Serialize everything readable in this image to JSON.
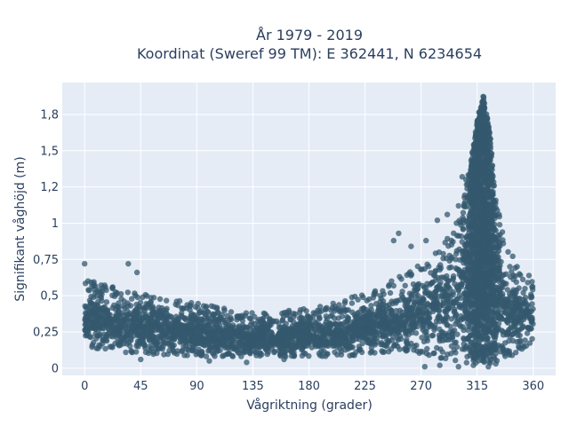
{
  "chart_data": {
    "type": "scatter",
    "title_line1": "År 1979 - 2019",
    "title_line2": "Koordinat (Sweref 99 TM): E 362441, N 6234654",
    "xlabel": "Vågriktning (grader)",
    "ylabel": "Signifikant våghöjd (m)",
    "xlim": [
      -18,
      378
    ],
    "ylim": [
      -0.05,
      1.97
    ],
    "x_ticks": [
      0,
      45,
      90,
      135,
      180,
      225,
      270,
      315,
      360
    ],
    "x_tick_labels": [
      "0",
      "45",
      "90",
      "135",
      "180",
      "225",
      "270",
      "315",
      "360"
    ],
    "y_ticks": [
      0,
      0.25,
      0.5,
      0.75,
      1,
      1.25,
      1.5,
      1.75
    ],
    "y_tick_labels": [
      "0",
      "0,25",
      "0,5",
      "0,75",
      "1",
      "1,2",
      "1,5",
      "1,8"
    ],
    "grid": true,
    "marker_color": "#34586e",
    "plot_background": "#e5ecf6",
    "envelope": {
      "direction": [
        0,
        10,
        20,
        30,
        45,
        60,
        90,
        120,
        135,
        150,
        180,
        200,
        225,
        240,
        260,
        280,
        295,
        305,
        312,
        316,
        320,
        325,
        330,
        340,
        350,
        360
      ],
      "upper": [
        0.62,
        0.6,
        0.57,
        0.53,
        0.52,
        0.48,
        0.45,
        0.4,
        0.38,
        0.39,
        0.42,
        0.45,
        0.52,
        0.58,
        0.66,
        0.78,
        0.95,
        1.2,
        1.55,
        1.75,
        1.88,
        1.65,
        1.15,
        0.82,
        0.7,
        0.62
      ],
      "lower": [
        0.15,
        0.13,
        0.12,
        0.11,
        0.1,
        0.09,
        0.08,
        0.08,
        0.08,
        0.08,
        0.08,
        0.08,
        0.09,
        0.1,
        0.1,
        0.08,
        0.05,
        0.04,
        0.03,
        0.03,
        0.03,
        0.03,
        0.04,
        0.06,
        0.1,
        0.15
      ]
    },
    "outliers": [
      {
        "x": 0,
        "y": 0.72
      },
      {
        "x": 35,
        "y": 0.72
      },
      {
        "x": 42,
        "y": 0.66
      },
      {
        "x": 248,
        "y": 0.88
      },
      {
        "x": 252,
        "y": 0.93
      },
      {
        "x": 262,
        "y": 0.84
      },
      {
        "x": 274,
        "y": 0.88
      },
      {
        "x": 283,
        "y": 1.02
      },
      {
        "x": 291,
        "y": 1.06
      },
      {
        "x": 300,
        "y": 1.12
      },
      {
        "x": 303,
        "y": 1.32
      },
      {
        "x": 306,
        "y": 1.3
      },
      {
        "x": 307,
        "y": 1.18
      },
      {
        "x": 326,
        "y": 1.22
      },
      {
        "x": 330,
        "y": 0.95
      },
      {
        "x": 336,
        "y": 0.86
      },
      {
        "x": 347,
        "y": 0.7
      },
      {
        "x": 352,
        "y": 0.52
      },
      {
        "x": 273,
        "y": 0.01
      },
      {
        "x": 285,
        "y": 0.02
      },
      {
        "x": 300,
        "y": 0.01
      },
      {
        "x": 312,
        "y": 0.02
      },
      {
        "x": 324,
        "y": 0.01
      },
      {
        "x": 330,
        "y": 0.03
      },
      {
        "x": 45,
        "y": 0.06
      },
      {
        "x": 100,
        "y": 0.05
      },
      {
        "x": 130,
        "y": 0.04
      },
      {
        "x": 160,
        "y": 0.06
      }
    ]
  }
}
